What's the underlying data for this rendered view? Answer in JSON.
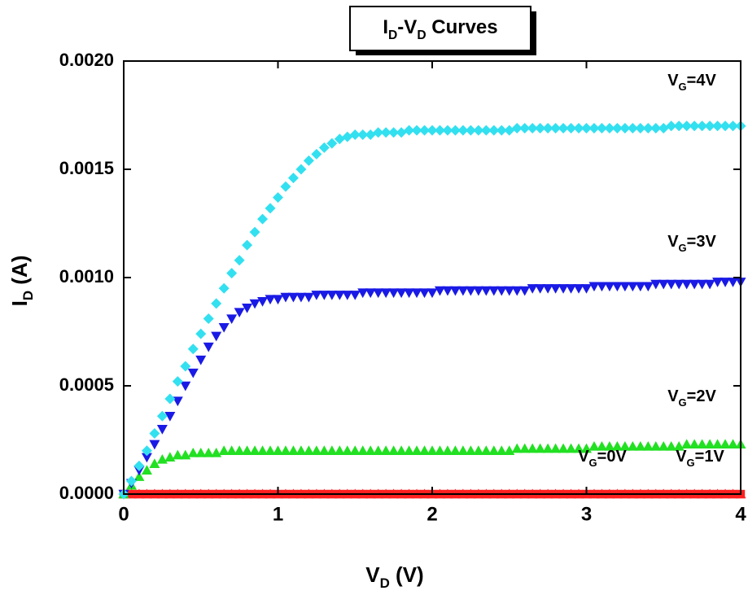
{
  "chart_data": {
    "type": "scatter",
    "title": "ID-VD Curves",
    "x_label": "VD (V)",
    "y_label": "ID (A)",
    "xlim": [
      0,
      4
    ],
    "xticks": [
      0,
      1,
      2,
      3,
      4
    ],
    "ylim": [
      0,
      0.002
    ],
    "yticks": [
      {
        "value": 0,
        "label": "0.0000"
      },
      {
        "value": 0.0005,
        "label": "0.0005"
      },
      {
        "value": 0.001,
        "label": "0.0010"
      },
      {
        "value": 0.0015,
        "label": "0.0015"
      },
      {
        "value": 0.002,
        "label": "0.0020"
      }
    ],
    "grid": false,
    "x": [
      0,
      0.05,
      0.1,
      0.15,
      0.2,
      0.25,
      0.3,
      0.35,
      0.4,
      0.45,
      0.5,
      0.55,
      0.6,
      0.65,
      0.7,
      0.75,
      0.8,
      0.85,
      0.9,
      0.95,
      1,
      1.05,
      1.1,
      1.15,
      1.2,
      1.25,
      1.3,
      1.35,
      1.4,
      1.45,
      1.5,
      1.55,
      1.6,
      1.65,
      1.7,
      1.75,
      1.8,
      1.85,
      1.9,
      1.95,
      2,
      2.05,
      2.1,
      2.15,
      2.2,
      2.25,
      2.3,
      2.35,
      2.4,
      2.45,
      2.5,
      2.55,
      2.6,
      2.65,
      2.7,
      2.75,
      2.8,
      2.85,
      2.9,
      2.95,
      3,
      3.05,
      3.1,
      3.15,
      3.2,
      3.25,
      3.3,
      3.35,
      3.4,
      3.45,
      3.5,
      3.55,
      3.6,
      3.65,
      3.7,
      3.75,
      3.8,
      3.85,
      3.9,
      3.95,
      4
    ],
    "series": [
      {
        "name": "VG=4V",
        "color": "#33e0f0",
        "marker": "diamond",
        "values": [
          0,
          6e-05,
          0.00013,
          0.0002,
          0.00028,
          0.00036,
          0.00044,
          0.00052,
          0.00059,
          0.00067,
          0.00074,
          0.00081,
          0.00088,
          0.00095,
          0.00102,
          0.00108,
          0.00115,
          0.00121,
          0.00127,
          0.00132,
          0.00137,
          0.00142,
          0.00146,
          0.0015,
          0.00154,
          0.00157,
          0.0016,
          0.00162,
          0.00164,
          0.00165,
          0.00166,
          0.00166,
          0.00166,
          0.00167,
          0.00167,
          0.00167,
          0.00167,
          0.00168,
          0.00168,
          0.00168,
          0.00168,
          0.00168,
          0.00168,
          0.00168,
          0.00168,
          0.00168,
          0.00168,
          0.00168,
          0.00168,
          0.00168,
          0.00168,
          0.00169,
          0.00169,
          0.00169,
          0.00169,
          0.00169,
          0.00169,
          0.00169,
          0.00169,
          0.00169,
          0.00169,
          0.00169,
          0.00169,
          0.00169,
          0.00169,
          0.00169,
          0.00169,
          0.00169,
          0.00169,
          0.00169,
          0.00169,
          0.0017,
          0.0017,
          0.0017,
          0.0017,
          0.0017,
          0.0017,
          0.0017,
          0.0017,
          0.0017,
          0.0017
        ]
      },
      {
        "name": "VG=3V",
        "color": "#1a1ae6",
        "marker": "triangle-down",
        "values": [
          0,
          5e-05,
          0.00011,
          0.00017,
          0.00023,
          0.0003,
          0.00036,
          0.00043,
          0.0005,
          0.00056,
          0.00062,
          0.00068,
          0.00073,
          0.00077,
          0.00081,
          0.00084,
          0.00086,
          0.00088,
          0.00089,
          0.0009,
          0.0009,
          0.00091,
          0.00091,
          0.00091,
          0.00091,
          0.00092,
          0.00092,
          0.00092,
          0.00092,
          0.00092,
          0.00092,
          0.00093,
          0.00093,
          0.00093,
          0.00093,
          0.00093,
          0.00093,
          0.00093,
          0.00093,
          0.00093,
          0.00093,
          0.00094,
          0.00094,
          0.00094,
          0.00094,
          0.00094,
          0.00094,
          0.00094,
          0.00094,
          0.00094,
          0.00094,
          0.00094,
          0.00094,
          0.00095,
          0.00095,
          0.00095,
          0.00095,
          0.00095,
          0.00095,
          0.00095,
          0.00095,
          0.00096,
          0.00096,
          0.00096,
          0.00096,
          0.00096,
          0.00096,
          0.00096,
          0.00096,
          0.00097,
          0.00097,
          0.00097,
          0.00097,
          0.00097,
          0.00097,
          0.00097,
          0.00097,
          0.00098,
          0.00098,
          0.00098,
          0.00098
        ]
      },
      {
        "name": "VG=2V",
        "color": "#22e022",
        "marker": "triangle-up",
        "values": [
          0,
          4e-05,
          8e-05,
          0.00011,
          0.00014,
          0.00016,
          0.00017,
          0.00018,
          0.00018,
          0.00019,
          0.00019,
          0.00019,
          0.00019,
          0.0002,
          0.0002,
          0.0002,
          0.0002,
          0.0002,
          0.0002,
          0.0002,
          0.0002,
          0.0002,
          0.0002,
          0.0002,
          0.0002,
          0.0002,
          0.0002,
          0.0002,
          0.0002,
          0.0002,
          0.0002,
          0.0002,
          0.0002,
          0.0002,
          0.0002,
          0.0002,
          0.0002,
          0.0002,
          0.0002,
          0.0002,
          0.0002,
          0.0002,
          0.0002,
          0.0002,
          0.0002,
          0.0002,
          0.0002,
          0.0002,
          0.0002,
          0.0002,
          0.0002,
          0.00021,
          0.00021,
          0.00021,
          0.00021,
          0.00021,
          0.00021,
          0.00021,
          0.00021,
          0.00021,
          0.00021,
          0.00022,
          0.00022,
          0.00022,
          0.00022,
          0.00022,
          0.00022,
          0.00022,
          0.00022,
          0.00022,
          0.00022,
          0.00022,
          0.00022,
          0.00023,
          0.00023,
          0.00023,
          0.00023,
          0.00023,
          0.00023,
          0.00023,
          0.00023
        ]
      },
      {
        "name": "VG=1V",
        "color": "#ff2020",
        "marker": "triangle-up",
        "values": [
          0,
          0,
          0,
          0,
          0,
          0,
          0,
          0,
          0,
          0,
          0,
          0,
          0,
          0,
          0,
          0,
          0,
          0,
          0,
          0,
          0,
          0,
          0,
          0,
          0,
          0,
          0,
          0,
          0,
          0,
          0,
          0,
          0,
          0,
          0,
          0,
          0,
          0,
          0,
          0,
          0,
          0,
          0,
          0,
          0,
          0,
          0,
          0,
          0,
          0,
          0,
          0,
          0,
          0,
          0,
          0,
          0,
          0,
          0,
          0,
          0,
          0,
          0,
          0,
          0,
          0,
          0,
          0,
          0,
          0,
          0,
          0,
          0,
          0,
          0,
          0,
          0,
          0,
          0,
          0,
          0
        ]
      },
      {
        "name": "VG=0V",
        "color": "#ff2020",
        "marker": "square",
        "values": [
          0,
          0,
          0,
          0,
          0,
          0,
          0,
          0,
          0,
          0,
          0,
          0,
          0,
          0,
          0,
          0,
          0,
          0,
          0,
          0,
          0,
          0,
          0,
          0,
          0,
          0,
          0,
          0,
          0,
          0,
          0,
          0,
          0,
          0,
          0,
          0,
          0,
          0,
          0,
          0,
          0,
          0,
          0,
          0,
          0,
          0,
          0,
          0,
          0,
          0,
          0,
          0,
          0,
          0,
          0,
          0,
          0,
          0,
          0,
          0,
          0,
          0,
          0,
          0,
          0,
          0,
          0,
          0,
          0,
          0,
          0,
          0,
          0,
          0,
          0,
          0,
          0,
          0,
          0,
          0,
          0
        ]
      }
    ]
  }
}
